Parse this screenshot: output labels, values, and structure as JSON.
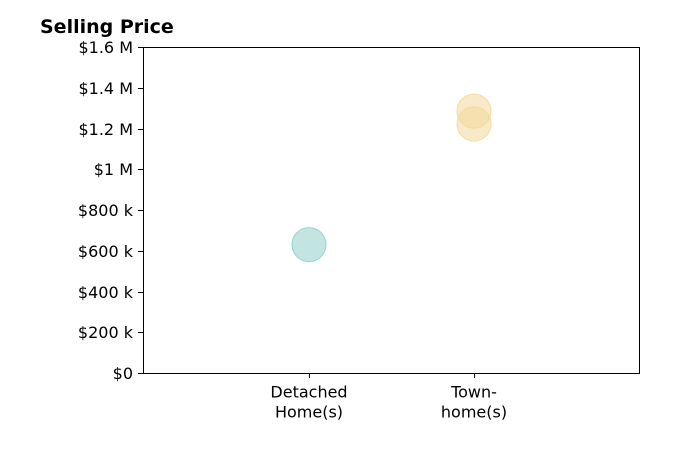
{
  "chart_data": {
    "type": "scatter",
    "title": "Selling Price",
    "xlabel": "",
    "ylabel": "",
    "categories": [
      [
        "Detached",
        "Home(s)"
      ],
      [
        "Town-",
        "home(s)"
      ]
    ],
    "points": [
      {
        "category_index": 0,
        "value": 630000,
        "color": "#8fd0c8"
      },
      {
        "category_index": 1,
        "value": 1285000,
        "color": "#f2d89a"
      },
      {
        "category_index": 1,
        "value": 1222000,
        "color": "#f2d89a"
      }
    ],
    "ylim": [
      0,
      1600000
    ],
    "y_ticks": [
      {
        "value": 0,
        "label": "$0"
      },
      {
        "value": 200000,
        "label": "$200 k"
      },
      {
        "value": 400000,
        "label": "$400 k"
      },
      {
        "value": 600000,
        "label": "$600 k"
      },
      {
        "value": 800000,
        "label": "$800 k"
      },
      {
        "value": 1000000,
        "label": "$1 M"
      },
      {
        "value": 1200000,
        "label": "$1.2 M"
      },
      {
        "value": 1400000,
        "label": "$1.4 M"
      },
      {
        "value": 1600000,
        "label": "$1.6 M"
      }
    ],
    "grid": false,
    "legend": "none"
  }
}
